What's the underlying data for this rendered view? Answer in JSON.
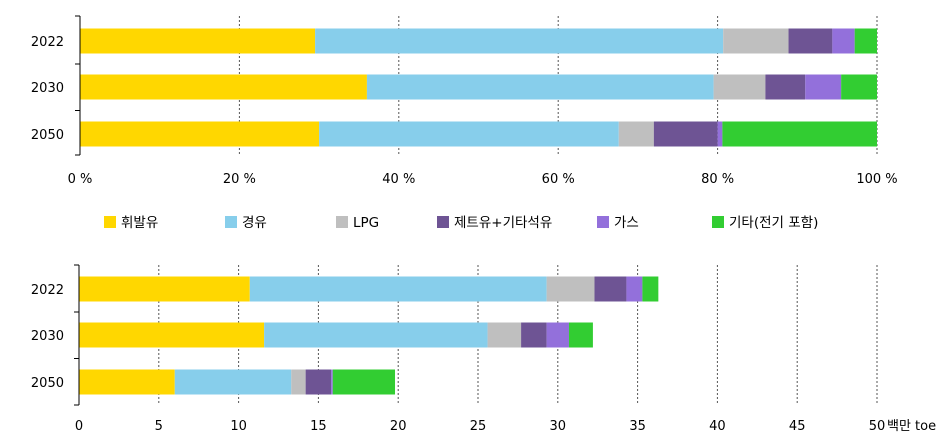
{
  "chart_data": [
    {
      "type": "bar",
      "orientation": "horizontal",
      "stacked": true,
      "categories": [
        "2022",
        "2030",
        "2050"
      ],
      "series": [
        {
          "name": "휘발유",
          "values": [
            29.5,
            36.0,
            30.0
          ]
        },
        {
          "name": "경유",
          "values": [
            51.2,
            43.5,
            37.6
          ]
        },
        {
          "name": "LPG",
          "values": [
            8.2,
            6.5,
            4.4
          ]
        },
        {
          "name": "제트유+기타석유",
          "values": [
            5.5,
            5.0,
            8.0
          ]
        },
        {
          "name": "가스",
          "values": [
            2.8,
            4.5,
            0.6
          ]
        },
        {
          "name": "기타(전기 포함)",
          "values": [
            2.8,
            4.5,
            19.4
          ]
        }
      ],
      "x_ticks": [
        "0 %",
        "20 %",
        "40 %",
        "60 %",
        "80 %",
        "100 %"
      ],
      "xlim": [
        0,
        100
      ],
      "grid": "vertical dashed",
      "legend": "bottom"
    },
    {
      "type": "bar",
      "orientation": "horizontal",
      "stacked": true,
      "categories": [
        "2022",
        "2030",
        "2050"
      ],
      "series": [
        {
          "name": "휘발유",
          "values": [
            10.7,
            11.6,
            6.0
          ]
        },
        {
          "name": "경유",
          "values": [
            18.6,
            14.0,
            7.3
          ]
        },
        {
          "name": "LPG",
          "values": [
            3.0,
            2.1,
            0.9
          ]
        },
        {
          "name": "제트유+기타석유",
          "values": [
            2.0,
            1.6,
            1.6
          ]
        },
        {
          "name": "가스",
          "values": [
            1.0,
            1.4,
            0.1
          ]
        },
        {
          "name": "기타(전기 포함)",
          "values": [
            1.0,
            1.5,
            3.9
          ]
        }
      ],
      "x_ticks": [
        "0",
        "5",
        "10",
        "15",
        "20",
        "25",
        "30",
        "35",
        "40",
        "45",
        "50"
      ],
      "xlim": [
        0,
        50
      ],
      "unit": "백만 toe",
      "grid": "vertical dashed"
    }
  ],
  "colors": [
    "#FFD700",
    "#87CEEB",
    "#BFBFBF",
    "#6E5494",
    "#9370DB",
    "#32CD32"
  ],
  "legend": {
    "items": [
      "휘발유",
      "경유",
      "LPG",
      "제트유+기타석유",
      "가스",
      "기타(전기 포함)"
    ]
  }
}
